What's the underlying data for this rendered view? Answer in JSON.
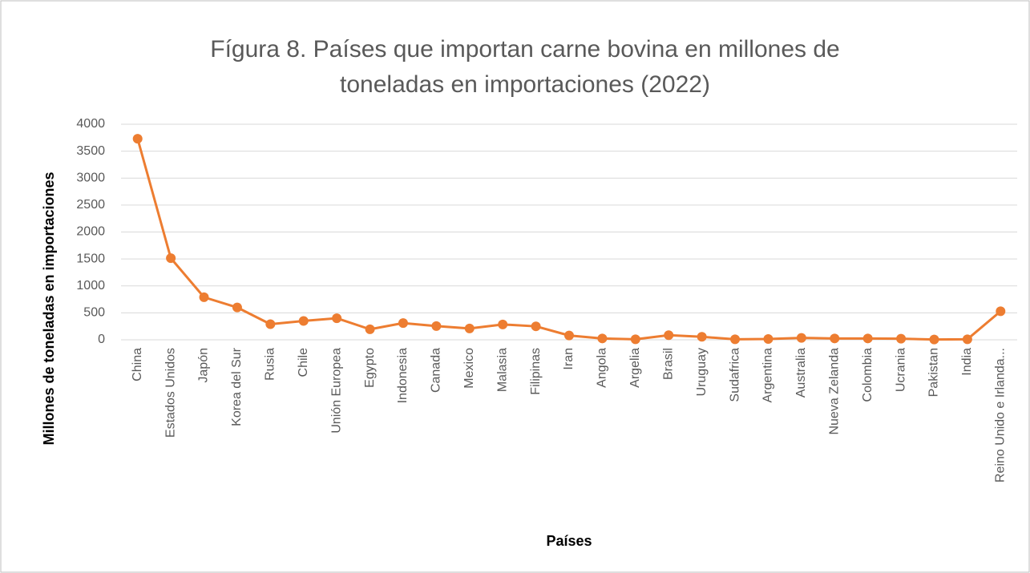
{
  "chart_data": {
    "type": "line",
    "title": "Fígura 8. Países que importan carne bovina en millones de toneladas en importaciones (2022)",
    "y_label": "Millones de toneladas en importaciones",
    "x_label": "Países",
    "categories": [
      "China",
      "Estados Unidos",
      "Japón",
      "Korea del Sur",
      "Rusia",
      "Chile",
      "Unión Europea",
      "Egypto",
      "Indonesia",
      "Canada",
      "Mexico",
      "Malasia",
      "Filipinas",
      "Iran",
      "Angola",
      "Argelia",
      "Brasil",
      "Uruguay",
      "Sudafrica",
      "Argentina",
      "Australia",
      "Nueva Zelanda",
      "Colombia",
      "Ucrania",
      "Pakistan",
      "India",
      "Reino Unido e Irlanda..."
    ],
    "values": [
      3730,
      1515,
      790,
      600,
      290,
      350,
      400,
      195,
      310,
      255,
      210,
      285,
      250,
      80,
      25,
      10,
      85,
      55,
      10,
      15,
      35,
      25,
      25,
      20,
      5,
      10,
      530
    ],
    "color": "#ed7d31",
    "ylim": [
      0,
      4000
    ],
    "yticks": [
      0,
      500,
      1000,
      1500,
      2000,
      2500,
      3000,
      3500,
      4000
    ],
    "grid": true
  }
}
